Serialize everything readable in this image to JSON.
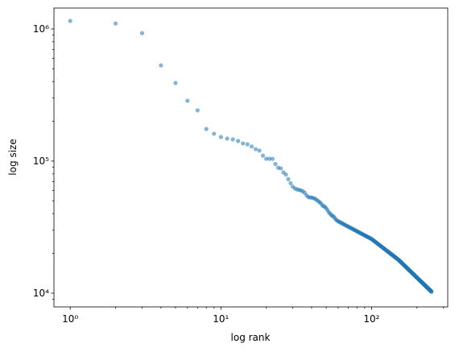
{
  "chart_data": {
    "type": "scatter",
    "xlabel": "log rank",
    "ylabel": "log size",
    "xscale": "log",
    "yscale": "log",
    "color": "#1f77b4",
    "xlim": [
      0.78,
      320
    ],
    "ylim": [
      7870,
      1440000
    ],
    "xticks": [
      {
        "value": 1,
        "label": "10⁰"
      },
      {
        "value": 10,
        "label": "10¹"
      },
      {
        "value": 100,
        "label": "10²"
      }
    ],
    "xminorticks": [
      2,
      3,
      4,
      5,
      6,
      7,
      8,
      9,
      20,
      30,
      40,
      50,
      60,
      70,
      80,
      90,
      200,
      300
    ],
    "yticks": [
      {
        "value": 10000,
        "label": "10⁴"
      },
      {
        "value": 100000,
        "label": "10⁵"
      },
      {
        "value": 1000000,
        "label": "10⁶"
      }
    ],
    "yminorticks": [
      9000,
      20000,
      30000,
      40000,
      50000,
      60000,
      70000,
      80000,
      90000,
      200000,
      300000,
      400000,
      500000,
      600000,
      700000,
      800000,
      900000
    ],
    "x": [
      1,
      2,
      3,
      4,
      5,
      6,
      7,
      8,
      9,
      10,
      11,
      12,
      13,
      14,
      15,
      16,
      17,
      18,
      19,
      20,
      21,
      22,
      23,
      24,
      25,
      26,
      27,
      28,
      29,
      30,
      31,
      32,
      33,
      34,
      35,
      36,
      37,
      38,
      39,
      40,
      41,
      42,
      43,
      44,
      45,
      46,
      47,
      48,
      49,
      50,
      51,
      52,
      53,
      54,
      55,
      56,
      57,
      58,
      59,
      60,
      61,
      62,
      63,
      64,
      65,
      66,
      67,
      68,
      69,
      70,
      71,
      72,
      73,
      74,
      75,
      76,
      77,
      78,
      79,
      80,
      81,
      82,
      83,
      84,
      85,
      86,
      87,
      88,
      89,
      90,
      91,
      92,
      93,
      94,
      95,
      96,
      97,
      98,
      99,
      100,
      101,
      102,
      103,
      104,
      105,
      106,
      107,
      108,
      109,
      110,
      111,
      112,
      113,
      114,
      115,
      116,
      117,
      118,
      119,
      120,
      121,
      122,
      123,
      124,
      125,
      126,
      127,
      128,
      129,
      130,
      131,
      132,
      133,
      134,
      135,
      136,
      137,
      138,
      139,
      140,
      141,
      142,
      143,
      144,
      145,
      146,
      147,
      148,
      149,
      150,
      151,
      152,
      153,
      154,
      155,
      156,
      157,
      158,
      159,
      160,
      161,
      162,
      163,
      164,
      165,
      166,
      167,
      168,
      169,
      170,
      171,
      172,
      173,
      174,
      175,
      176,
      177,
      178,
      179,
      180,
      181,
      182,
      183,
      184,
      185,
      186,
      187,
      188,
      189,
      190,
      191,
      192,
      193,
      194,
      195,
      196,
      197,
      198,
      199,
      200,
      201,
      202,
      203,
      204,
      205,
      206,
      207,
      208,
      209,
      210,
      211,
      212,
      213,
      214,
      215,
      216,
      217,
      218,
      219,
      220,
      221,
      222,
      223,
      224,
      225,
      226,
      227,
      228,
      229,
      230,
      231,
      232,
      233,
      234,
      235,
      236,
      237,
      238,
      239,
      240,
      241,
      242,
      243,
      244,
      245,
      246,
      247,
      248,
      249,
      250
    ],
    "values": [
      1150000,
      1100000,
      930000,
      530000,
      390000,
      286000,
      242000,
      175000,
      161000,
      152000,
      148000,
      146000,
      142000,
      136000,
      134000,
      129000,
      123000,
      120000,
      110000,
      104000,
      104000,
      104000,
      95000,
      89000,
      88000,
      82000,
      79000,
      73000,
      68000,
      64000,
      62000,
      61000,
      60500,
      60000,
      59000,
      57500,
      55000,
      53500,
      53000,
      53000,
      52500,
      52000,
      51000,
      50000,
      49000,
      48000,
      46500,
      45500,
      45000,
      44000,
      42500,
      41000,
      40000,
      39000,
      38500,
      38000,
      37000,
      36000,
      35500,
      35000,
      34670,
      34310,
      34000,
      33670,
      33350,
      33040,
      32740,
      32450,
      32170,
      31890,
      31620,
      31350,
      31100,
      30840,
      30590,
      30350,
      30100,
      29870,
      29640,
      29420,
      29200,
      28970,
      28760,
      28560,
      28350,
      28150,
      27960,
      27770,
      27580,
      27390,
      27210,
      27030,
      26850,
      26680,
      26510,
      26340,
      26180,
      26020,
      25860,
      25700,
      25480,
      25260,
      25040,
      24830,
      24620,
      24420,
      24220,
      24020,
      23830,
      23630,
      23450,
      23260,
      23080,
      22900,
      22730,
      22560,
      22390,
      22220,
      22060,
      21900,
      21740,
      21580,
      21430,
      21270,
      21120,
      20980,
      20830,
      20690,
      20550,
      20410,
      20270,
      20130,
      20000,
      19870,
      19740,
      19610,
      19480,
      19360,
      19230,
      19110,
      18990,
      18870,
      18760,
      18640,
      18530,
      18420,
      18310,
      18200,
      18090,
      18000,
      17869,
      17740,
      17612,
      17486,
      17362,
      17240,
      17119,
      17000,
      16883,
      16767,
      16652,
      16539,
      16428,
      16318,
      16209,
      16101,
      15994,
      15889,
      15785,
      15683,
      15582,
      15481,
      15382,
      15284,
      15188,
      15093,
      14998,
      14906,
      14814,
      14723,
      14634,
      14545,
      14458,
      14371,
      14286,
      14202,
      14118,
      14036,
      13954,
      13874,
      13794,
      13715,
      13637,
      13560,
      13483,
      13408,
      13333,
      13259,
      13186,
      13114,
      13042,
      12971,
      12901,
      12832,
      12763,
      12695,
      12628,
      12561,
      12495,
      12430,
      12365,
      12301,
      12237,
      12174,
      12112,
      12050,
      11989,
      11929,
      11868,
      11809,
      11750,
      11692,
      11634,
      11577,
      11520,
      11464,
      11408,
      11353,
      11299,
      11245,
      11191,
      11138,
      11086,
      11034,
      10982,
      10931,
      10880,
      10830,
      10780,
      10730,
      10681,
      10633,
      10585,
      10537,
      10490,
      10443,
      10396,
      10350,
      10305,
      10259
    ]
  }
}
